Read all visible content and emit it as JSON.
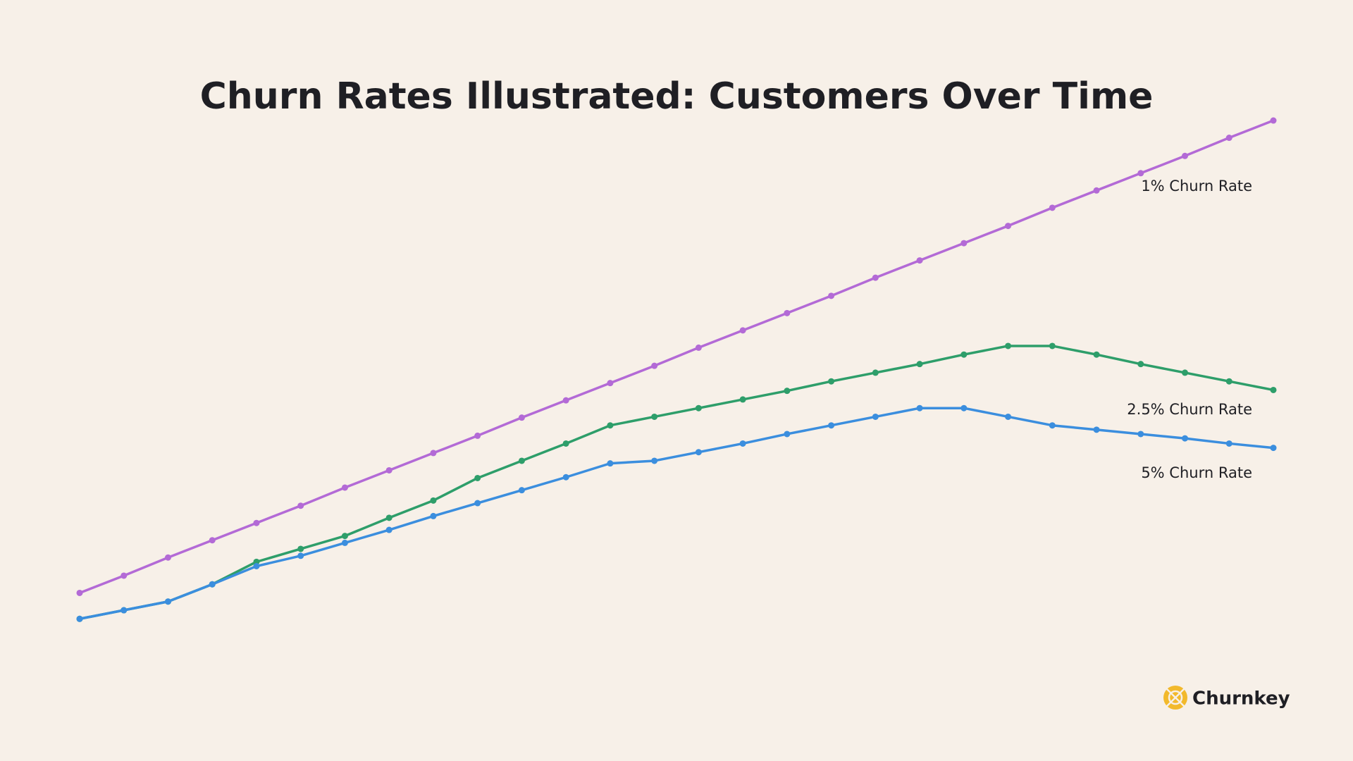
{
  "chart_data": {
    "type": "line",
    "title": "Churn Rates Illustrated: Customers Over Time",
    "ylim": [
      0,
      700
    ],
    "series": [
      {
        "name": "1% Churn Rate",
        "color": "#b36ad6",
        "values": [
          113,
          133,
          154,
          174,
          194,
          214,
          235,
          255,
          275,
          295,
          316,
          336,
          356,
          376,
          397,
          417,
          437,
          457,
          478,
          498,
          518,
          538,
          559,
          579,
          599,
          619,
          640,
          660
        ]
      },
      {
        "name": "2.5% Churn Rate",
        "color": "#2e9e6a",
        "values": [
          83,
          93,
          103,
          123,
          149,
          164,
          179,
          200,
          220,
          246,
          266,
          286,
          307,
          317,
          327,
          337,
          347,
          358,
          368,
          378,
          389,
          399,
          399,
          389,
          378,
          368,
          358,
          348
        ]
      },
      {
        "name": "5% Churn Rate",
        "color": "#3b8ede",
        "values": [
          83,
          93,
          103,
          123,
          144,
          156,
          171,
          186,
          202,
          217,
          232,
          247,
          263,
          266,
          276,
          286,
          297,
          307,
          317,
          327,
          327,
          317,
          307,
          302,
          297,
          292,
          286,
          281
        ]
      }
    ]
  },
  "brand": "Churnkey"
}
